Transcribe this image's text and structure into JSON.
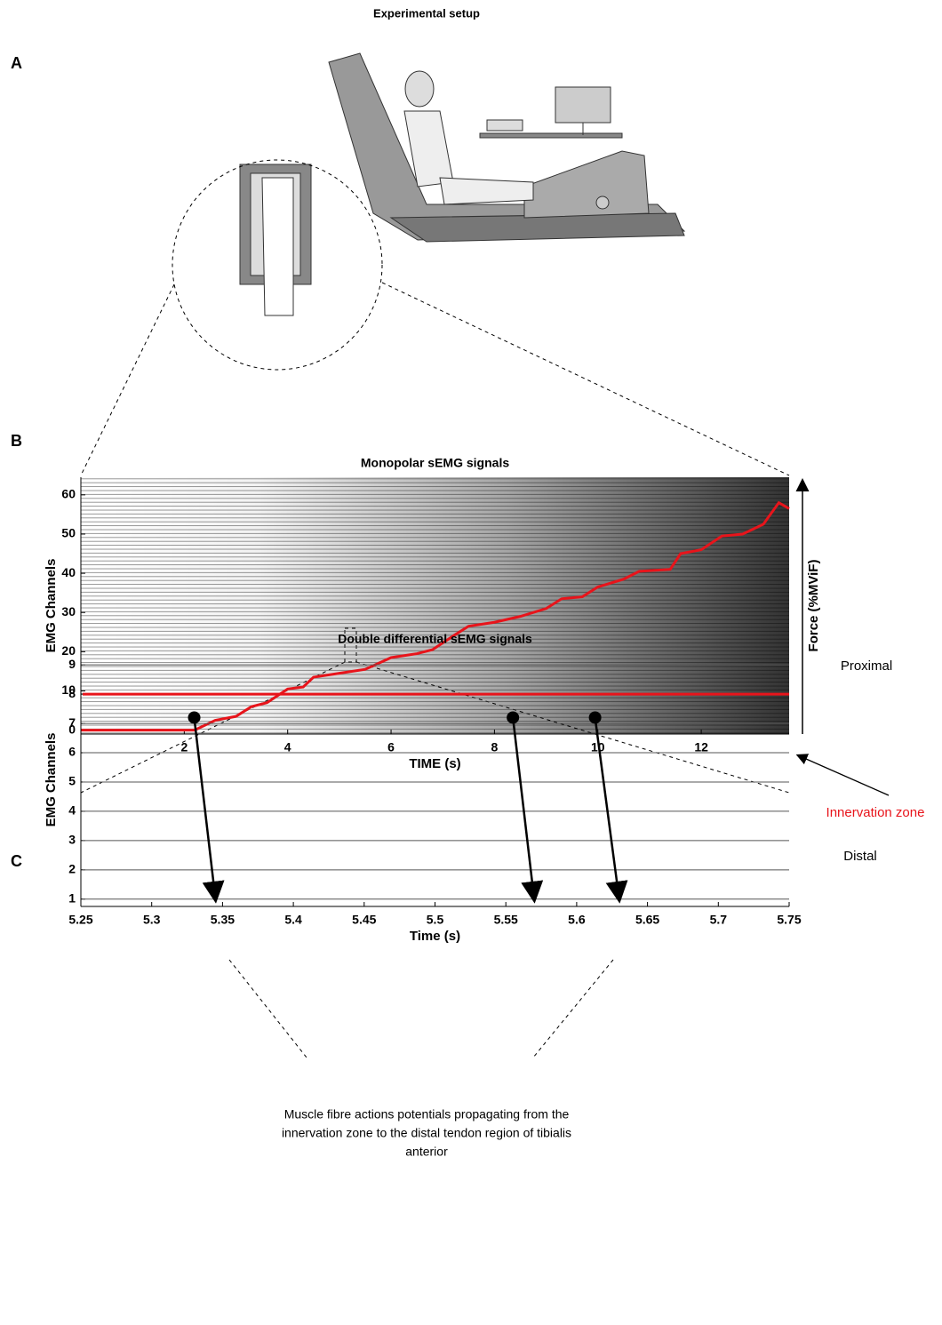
{
  "title": "Experimental setup",
  "panel_labels": [
    "A",
    "B",
    "C"
  ],
  "caption": [
    "Muscle fibre actions potentials propagating from the",
    "innervation zone to the distal tendon region of tibialis",
    "anterior"
  ],
  "chart_data": [
    {
      "type": "line",
      "title": "Monopolar sEMG signals",
      "x_label": "TIME (s)",
      "y_label": "EMG Channels",
      "y2_label": "Force (%MViF)",
      "xlim": [
        0,
        13.7
      ],
      "xticks": [
        2,
        4,
        6,
        8,
        10,
        12
      ],
      "ylim": [
        -1,
        64.5
      ],
      "yticks": [
        0,
        10,
        20,
        30,
        40,
        50,
        60
      ],
      "series": [
        {
          "color": "#e8141b",
          "x": [
            0,
            2.2,
            2.6,
            3,
            3.3,
            3.6,
            4,
            4.3,
            4.5,
            5,
            5.5,
            6,
            6.5,
            6.8,
            7.2,
            7.5,
            8,
            8.5,
            9,
            9.3,
            9.7,
            10,
            10.5,
            10.8,
            11.4,
            11.6,
            12,
            12.4,
            12.8,
            13.2,
            13.5,
            13.7
          ],
          "y": [
            0,
            0,
            2.5,
            3.5,
            6,
            7,
            10.5,
            11,
            13.5,
            14.5,
            15.5,
            18.5,
            19.5,
            20.5,
            24,
            26.5,
            27.5,
            29,
            31,
            33.5,
            34,
            36.5,
            38.5,
            40.5,
            41,
            45,
            46,
            49.5,
            50,
            52.5,
            58,
            56.5
          ]
        }
      ]
    },
    {
      "type": "line",
      "title": "Double differential sEMG signals",
      "x_label": "Time (s)",
      "y_label": "EMG Channels",
      "xlim": [
        5.25,
        5.75
      ],
      "xticks": [
        5.25,
        5.3,
        5.35,
        5.4,
        5.45,
        5.5,
        5.55,
        5.6,
        5.65,
        5.7,
        5.75
      ],
      "ylim": [
        0.75,
        9.4
      ],
      "yticks": [
        1,
        2,
        3,
        4,
        5,
        6,
        7,
        8,
        9
      ],
      "highlight": {
        "tick": 8,
        "color": "#e8141b"
      },
      "propagation": [
        {
          "x": [
            5.33,
            5.345
          ],
          "y": [
            7.2,
            1
          ]
        },
        {
          "x": [
            5.555,
            5.57
          ],
          "y": [
            7.2,
            1
          ]
        },
        {
          "x": [
            5.613,
            5.63
          ],
          "y": [
            7.2,
            1
          ]
        }
      ],
      "labels": {
        "proximal": "Proximal",
        "innervation_zone": "Innervation zone",
        "distal": "Distal"
      }
    }
  ]
}
